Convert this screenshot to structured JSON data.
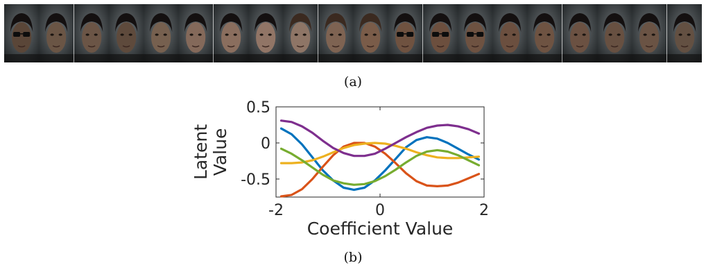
{
  "faces": {
    "count": 20,
    "tones": [
      "#5a4638",
      "#6a5545",
      "#6b5546",
      "#5e4a3c",
      "#76604f",
      "#84695a",
      "#8a6e5e",
      "#917566",
      "#8e7566",
      "#7e6352",
      "#7a5c49",
      "#6f5240",
      "#6c4f3e",
      "#6e5241",
      "#6b4f3f",
      "#6e5342",
      "#6b5142",
      "#675041",
      "#6a5344",
      "#635042"
    ],
    "glasses": [
      true,
      false,
      false,
      false,
      false,
      false,
      false,
      false,
      false,
      false,
      false,
      true,
      true,
      true,
      false,
      false,
      false,
      false,
      false,
      false
    ],
    "dark_hair": [
      true,
      true,
      true,
      true,
      true,
      true,
      true,
      true,
      false,
      false,
      false,
      true,
      true,
      true,
      true,
      true,
      true,
      true,
      true,
      true
    ]
  },
  "captions": {
    "a": "(a)",
    "b": "(b)"
  },
  "chart_data": {
    "type": "line",
    "xlabel": "Coefficient Value",
    "ylabel": "Latent Value",
    "xlim": [
      -2,
      2
    ],
    "ylim": [
      -0.75,
      0.5
    ],
    "xticks": [
      "-2",
      "0",
      "2"
    ],
    "yticks": [
      "0.5",
      "0",
      "-0.5"
    ],
    "x": [
      -1.9,
      -1.7,
      -1.5,
      -1.3,
      -1.1,
      -0.9,
      -0.7,
      -0.5,
      -0.3,
      -0.1,
      0.1,
      0.3,
      0.5,
      0.7,
      0.9,
      1.1,
      1.3,
      1.5,
      1.7,
      1.9
    ],
    "series": [
      {
        "color": "#0072BD",
        "values": [
          0.2,
          0.12,
          -0.02,
          -0.2,
          -0.38,
          -0.52,
          -0.62,
          -0.65,
          -0.62,
          -0.52,
          -0.38,
          -0.22,
          -0.06,
          0.04,
          0.08,
          0.06,
          0.0,
          -0.08,
          -0.16,
          -0.23
        ]
      },
      {
        "color": "#D95319",
        "values": [
          -0.74,
          -0.72,
          -0.64,
          -0.5,
          -0.33,
          -0.17,
          -0.05,
          0.0,
          0.0,
          -0.05,
          -0.15,
          -0.28,
          -0.42,
          -0.53,
          -0.59,
          -0.6,
          -0.59,
          -0.55,
          -0.49,
          -0.43
        ]
      },
      {
        "color": "#EDB120",
        "values": [
          -0.28,
          -0.28,
          -0.27,
          -0.24,
          -0.19,
          -0.13,
          -0.07,
          -0.03,
          -0.01,
          -0.0,
          -0.01,
          -0.04,
          -0.08,
          -0.13,
          -0.17,
          -0.2,
          -0.21,
          -0.21,
          -0.2,
          -0.19
        ]
      },
      {
        "color": "#7E2F8E",
        "values": [
          0.31,
          0.29,
          0.23,
          0.14,
          0.03,
          -0.07,
          -0.14,
          -0.18,
          -0.18,
          -0.15,
          -0.08,
          0.0,
          0.08,
          0.15,
          0.21,
          0.24,
          0.25,
          0.23,
          0.19,
          0.13
        ]
      },
      {
        "color": "#77AC30",
        "values": [
          -0.08,
          -0.15,
          -0.24,
          -0.34,
          -0.44,
          -0.52,
          -0.56,
          -0.58,
          -0.57,
          -0.53,
          -0.46,
          -0.37,
          -0.27,
          -0.18,
          -0.12,
          -0.1,
          -0.12,
          -0.17,
          -0.24,
          -0.31
        ]
      }
    ]
  }
}
